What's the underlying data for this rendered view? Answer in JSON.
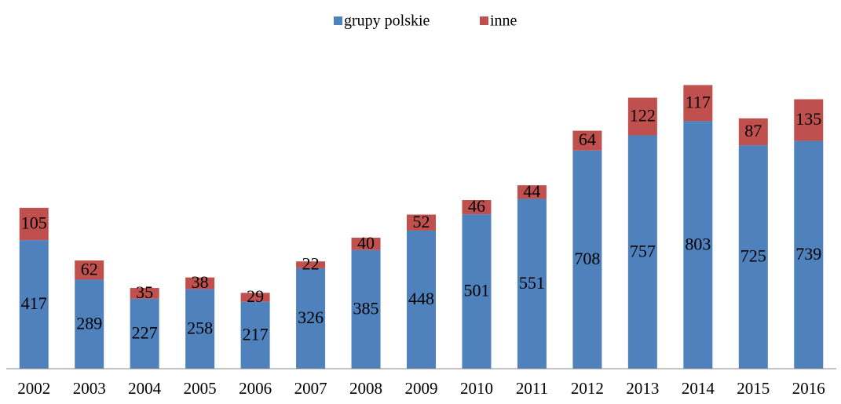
{
  "chart_data": {
    "type": "stacked_bar",
    "categories": [
      "2002",
      "2003",
      "2004",
      "2005",
      "2006",
      "2007",
      "2008",
      "2009",
      "2010",
      "2011",
      "2012",
      "2013",
      "2014",
      "2015",
      "2016"
    ],
    "series": [
      {
        "name": "grupy polskie",
        "color": "#4f81bd",
        "values": [
          417,
          289,
          227,
          258,
          217,
          326,
          385,
          448,
          501,
          551,
          708,
          757,
          803,
          725,
          739
        ]
      },
      {
        "name": "inne",
        "color": "#c0504d",
        "values": [
          105,
          62,
          35,
          38,
          29,
          22,
          40,
          52,
          46,
          44,
          64,
          122,
          117,
          87,
          135
        ]
      }
    ],
    "ylim": [
      0,
      1000
    ],
    "legend": "top"
  }
}
